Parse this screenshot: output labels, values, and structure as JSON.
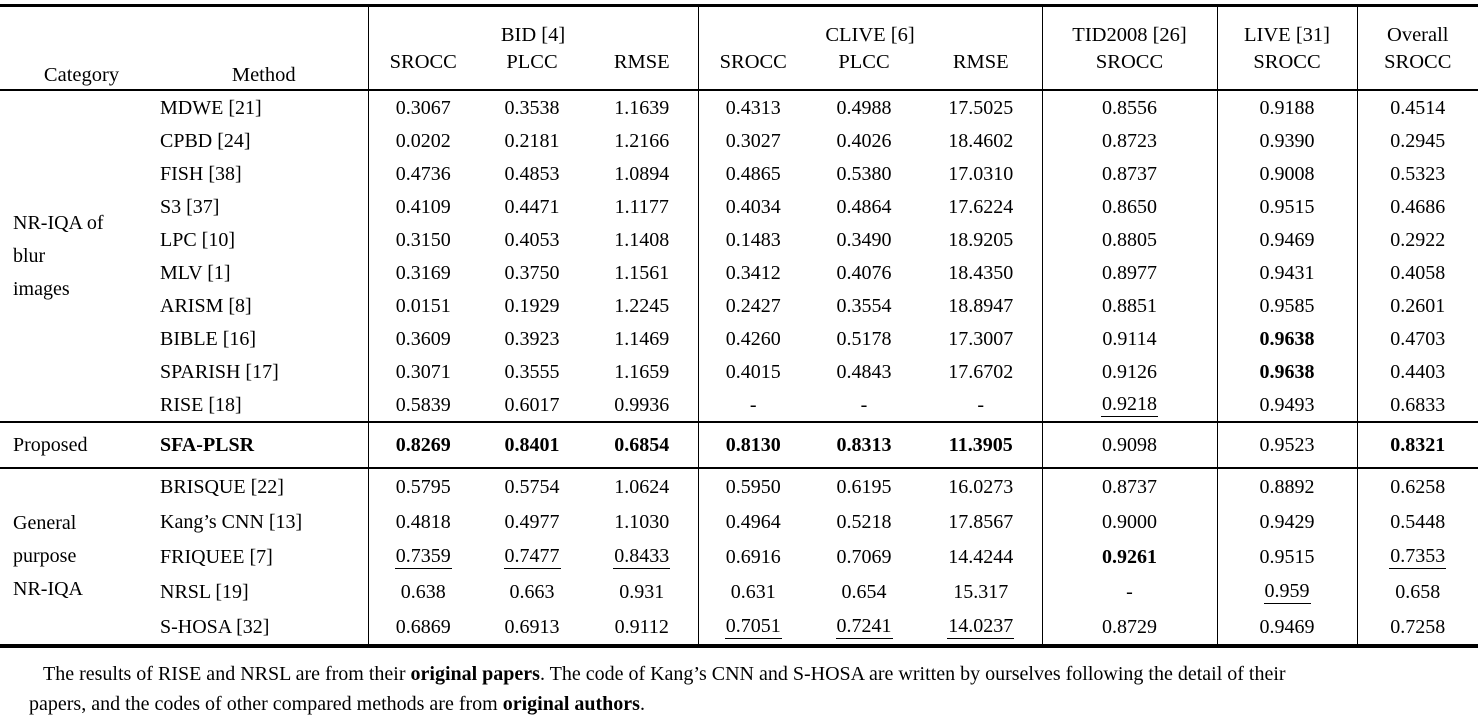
{
  "colors": {
    "text": "#000000",
    "background": "#ffffff",
    "rule": "#000000"
  },
  "table": {
    "header": {
      "category": "Category",
      "method": "Method",
      "groups": [
        {
          "label": "BID [4]",
          "subs": [
            "SROCC",
            "PLCC",
            "RMSE"
          ]
        },
        {
          "label": "CLIVE [6]",
          "subs": [
            "SROCC",
            "PLCC",
            "RMSE"
          ]
        },
        {
          "label": "TID2008 [26]",
          "subs": [
            "SROCC"
          ]
        },
        {
          "label": "LIVE [31]",
          "subs": [
            "SROCC"
          ]
        },
        {
          "label": "Overall",
          "subs": [
            "SROCC"
          ]
        }
      ]
    },
    "sections": [
      {
        "category_lines": [
          "NR-IQA of",
          "blur",
          "images"
        ],
        "style": "sec-blur",
        "rows": [
          {
            "method": "MDWE [21]",
            "values": [
              "0.3067",
              "0.3538",
              "1.1639",
              "0.4313",
              "0.4988",
              "17.5025",
              "0.8556",
              "0.9188",
              "0.4514"
            ]
          },
          {
            "method": "CPBD [24]",
            "values": [
              "0.0202",
              "0.2181",
              "1.2166",
              "0.3027",
              "0.4026",
              "18.4602",
              "0.8723",
              "0.9390",
              "0.2945"
            ]
          },
          {
            "method": "FISH [38]",
            "values": [
              "0.4736",
              "0.4853",
              "1.0894",
              "0.4865",
              "0.5380",
              "17.0310",
              "0.8737",
              "0.9008",
              "0.5323"
            ]
          },
          {
            "method": "S3 [37]",
            "values": [
              "0.4109",
              "0.4471",
              "1.1177",
              "0.4034",
              "0.4864",
              "17.6224",
              "0.8650",
              "0.9515",
              "0.4686"
            ]
          },
          {
            "method": "LPC [10]",
            "values": [
              "0.3150",
              "0.4053",
              "1.1408",
              "0.1483",
              "0.3490",
              "18.9205",
              "0.8805",
              "0.9469",
              "0.2922"
            ]
          },
          {
            "method": "MLV [1]",
            "values": [
              "0.3169",
              "0.3750",
              "1.1561",
              "0.3412",
              "0.4076",
              "18.4350",
              "0.8977",
              "0.9431",
              "0.4058"
            ]
          },
          {
            "method": "ARISM [8]",
            "values": [
              "0.0151",
              "0.1929",
              "1.2245",
              "0.2427",
              "0.3554",
              "18.8947",
              "0.8851",
              "0.9585",
              "0.2601"
            ]
          },
          {
            "method": "BIBLE [16]",
            "values": [
              "0.3609",
              "0.3923",
              "1.1469",
              "0.4260",
              "0.5178",
              "17.3007",
              "0.9114",
              {
                "v": "0.9638",
                "b": true
              },
              "0.4703"
            ]
          },
          {
            "method": "SPARISH [17]",
            "values": [
              "0.3071",
              "0.3555",
              "1.1659",
              "0.4015",
              "0.4843",
              "17.6702",
              "0.9126",
              {
                "v": "0.9638",
                "b": true
              },
              "0.4403"
            ]
          },
          {
            "method": "RISE [18]",
            "values": [
              "0.5839",
              "0.6017",
              "0.9936",
              "-",
              "-",
              "-",
              {
                "v": "0.9218",
                "u": true
              },
              "0.9493",
              "0.6833"
            ]
          }
        ]
      },
      {
        "category_lines": [
          "Proposed"
        ],
        "style": "proposed",
        "rows": [
          {
            "method": "SFA-PLSR",
            "method_bold": true,
            "values": [
              {
                "v": "0.8269",
                "b": true
              },
              {
                "v": "0.8401",
                "b": true
              },
              {
                "v": "0.6854",
                "b": true
              },
              {
                "v": "0.8130",
                "b": true
              },
              {
                "v": "0.8313",
                "b": true
              },
              {
                "v": "11.3905",
                "b": true
              },
              "0.9098",
              "0.9523",
              {
                "v": "0.8321",
                "b": true
              }
            ]
          }
        ]
      },
      {
        "category_lines": [
          "General",
          "purpose",
          "NR-IQA"
        ],
        "style": "sec-general",
        "rows": [
          {
            "method": "BRISQUE [22]",
            "values": [
              "0.5795",
              "0.5754",
              "1.0624",
              "0.5950",
              "0.6195",
              "16.0273",
              "0.8737",
              "0.8892",
              "0.6258"
            ]
          },
          {
            "method": "Kang’s CNN [13]",
            "values": [
              "0.4818",
              "0.4977",
              "1.1030",
              "0.4964",
              "0.5218",
              "17.8567",
              "0.9000",
              "0.9429",
              "0.5448"
            ]
          },
          {
            "method": "FRIQUEE [7]",
            "values": [
              {
                "v": "0.7359",
                "u": true
              },
              {
                "v": "0.7477",
                "u": true
              },
              {
                "v": "0.8433",
                "u": true
              },
              "0.6916",
              "0.7069",
              "14.4244",
              {
                "v": "0.9261",
                "b": true
              },
              "0.9515",
              {
                "v": "0.7353",
                "u": true
              }
            ]
          },
          {
            "method": "NRSL [19]",
            "values": [
              "0.638",
              "0.663",
              "0.931",
              "0.631",
              "0.654",
              "15.317",
              "-",
              {
                "v": "0.959",
                "u": true
              },
              "0.658"
            ]
          },
          {
            "method": "S-HOSA [32]",
            "values": [
              "0.6869",
              "0.6913",
              "0.9112",
              {
                "v": "0.7051",
                "u": true
              },
              {
                "v": "0.7241",
                "u": true
              },
              {
                "v": "14.0237",
                "u": true
              },
              "0.8729",
              "0.9469",
              "0.7258"
            ]
          }
        ]
      }
    ]
  },
  "footnote": {
    "lines": [
      [
        {
          "t": "The results of RISE and NRSL are from their "
        },
        {
          "t": "original papers",
          "b": true
        },
        {
          "t": ". The code of Kang’s CNN and S-HOSA are written by ourselves following the detail of their"
        }
      ],
      [
        {
          "t": "papers, and the codes of other compared methods are from "
        },
        {
          "t": "original authors",
          "b": true
        },
        {
          "t": "."
        }
      ]
    ]
  }
}
